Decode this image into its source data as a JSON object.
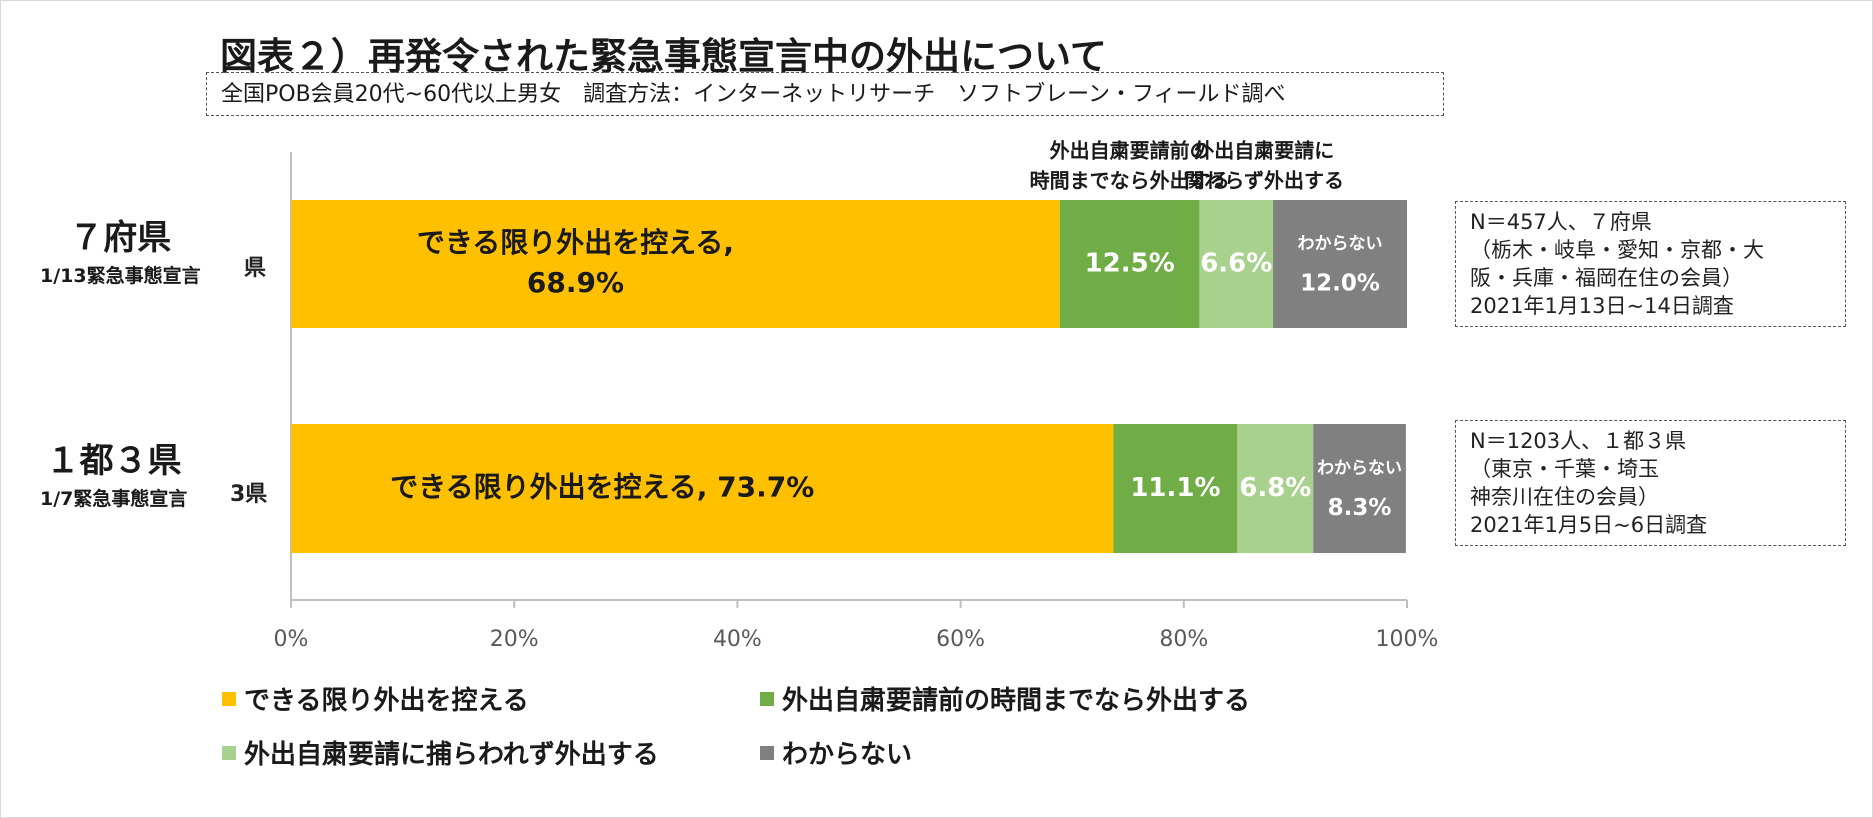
{
  "title": "図表２）再発令された緊急事態宣言中の外出について",
  "subtitle": "全国POB会員20代~60代以上男女　調査方法：インターネットリサーチ　ソフトブレーン・フィールド調べ",
  "rows": [
    {
      "label": "７府県",
      "sub": "1/13緊急事態宣言",
      "clipped_category": "県"
    },
    {
      "label": "１都３県",
      "sub": "1/7緊急事態宣言",
      "clipped_category": "3県"
    }
  ],
  "info_boxes": [
    {
      "lines": [
        "N＝457人、７府県",
        "（栃木・岐阜・愛知・京都・大",
        "阪・兵庫・福岡在住の会員）",
        "2021年1月13日~14日調査"
      ]
    },
    {
      "lines": [
        "N＝1203人、１都３県",
        "（東京・千葉・埼玉",
        "神奈川在住の会員）",
        "2021年1月5日~6日調査"
      ]
    }
  ],
  "chart_data": {
    "type": "bar",
    "orientation": "horizontal",
    "stacked": true,
    "categories": [
      "7府県",
      "3県"
    ],
    "series": [
      {
        "name": "できる限り外出を控える",
        "values": [
          68.9,
          73.7
        ],
        "color": "#FFC000",
        "data_labels": [
          [
            "できる限り外出を控える,",
            "68.9%"
          ],
          [
            "できる限り外出を控える, 73.7%"
          ]
        ]
      },
      {
        "name": "外出自粛要請前の時間までなら外出する",
        "values": [
          12.5,
          11.1
        ],
        "color": "#70AD47",
        "data_labels": [
          [
            "12.5%"
          ],
          [
            "11.1%"
          ]
        ]
      },
      {
        "name": "外出自粛要請に捕らわれず外出する",
        "values": [
          6.6,
          6.8
        ],
        "color": "#A9D18E",
        "data_labels": [
          [
            "6.6%"
          ],
          [
            "6.8%"
          ]
        ]
      },
      {
        "name": "わからない",
        "values": [
          12.0,
          8.3
        ],
        "color": "#808080",
        "data_labels": [
          [
            "わからない",
            "12.0%"
          ],
          [
            "わからない",
            "8.3%"
          ]
        ]
      }
    ],
    "segment_headers": [
      {
        "series_index": 1,
        "lines": [
          "外出自粛要請前の",
          "時間までなら外出する"
        ]
      },
      {
        "series_index": 2,
        "lines": [
          "外出自粛要請に",
          "関わらず外出する"
        ]
      }
    ],
    "xlim": [
      0,
      100
    ],
    "xticks": [
      "0%",
      "20%",
      "40%",
      "60%",
      "80%",
      "100%"
    ],
    "grid": false,
    "legend_position": "bottom"
  }
}
